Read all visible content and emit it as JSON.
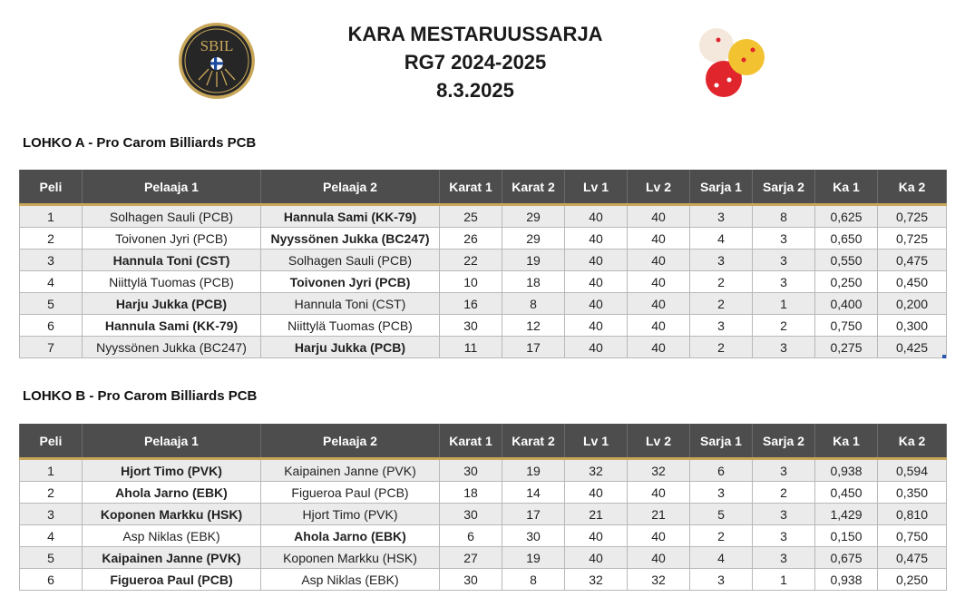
{
  "header": {
    "logo_text": "SBIL",
    "title_line1": "KARA MESTARUUSSARJA",
    "title_line2": "RG7 2024-2025",
    "title_line3": "8.3.2025",
    "logo_icon": "sbil-logo-icon",
    "balls_icon": "billiard-balls-icon"
  },
  "columns": [
    "Peli",
    "Pelaaja 1",
    "Pelaaja 2",
    "Karat 1",
    "Karat 2",
    "Lv 1",
    "Lv 2",
    "Sarja 1",
    "Sarja 2",
    "Ka 1",
    "Ka 2"
  ],
  "groups": [
    {
      "title": "LOHKO A - Pro Carom Billiards PCB",
      "rows": [
        {
          "peli": "1",
          "p1": "Solhagen Sauli (PCB)",
          "p2": "Hannula Sami (KK-79)",
          "k1": "25",
          "k2": "29",
          "lv1": "40",
          "lv2": "40",
          "s1": "3",
          "s2": "8",
          "ka1": "0,625",
          "ka2": "0,725",
          "winner": 2
        },
        {
          "peli": "2",
          "p1": "Toivonen Jyri (PCB)",
          "p2": "Nyyssönen Jukka (BC247)",
          "k1": "26",
          "k2": "29",
          "lv1": "40",
          "lv2": "40",
          "s1": "4",
          "s2": "3",
          "ka1": "0,650",
          "ka2": "0,725",
          "winner": 2
        },
        {
          "peli": "3",
          "p1": "Hannula Toni (CST)",
          "p2": "Solhagen Sauli (PCB)",
          "k1": "22",
          "k2": "19",
          "lv1": "40",
          "lv2": "40",
          "s1": "3",
          "s2": "3",
          "ka1": "0,550",
          "ka2": "0,475",
          "winner": 1
        },
        {
          "peli": "4",
          "p1": "Niittylä Tuomas (PCB)",
          "p2": "Toivonen Jyri (PCB)",
          "k1": "10",
          "k2": "18",
          "lv1": "40",
          "lv2": "40",
          "s1": "2",
          "s2": "3",
          "ka1": "0,250",
          "ka2": "0,450",
          "winner": 2
        },
        {
          "peli": "5",
          "p1": "Harju Jukka (PCB)",
          "p2": "Hannula Toni (CST)",
          "k1": "16",
          "k2": "8",
          "lv1": "40",
          "lv2": "40",
          "s1": "2",
          "s2": "1",
          "ka1": "0,400",
          "ka2": "0,200",
          "winner": 1
        },
        {
          "peli": "6",
          "p1": "Hannula Sami (KK-79)",
          "p2": "Niittylä Tuomas (PCB)",
          "k1": "30",
          "k2": "12",
          "lv1": "40",
          "lv2": "40",
          "s1": "3",
          "s2": "2",
          "ka1": "0,750",
          "ka2": "0,300",
          "winner": 1
        },
        {
          "peli": "7",
          "p1": "Nyyssönen Jukka (BC247)",
          "p2": "Harju Jukka (PCB)",
          "k1": "11",
          "k2": "17",
          "lv1": "40",
          "lv2": "40",
          "s1": "2",
          "s2": "3",
          "ka1": "0,275",
          "ka2": "0,425",
          "winner": 2
        }
      ]
    },
    {
      "title": "LOHKO B - Pro Carom Billiards PCB",
      "rows": [
        {
          "peli": "1",
          "p1": "Hjort Timo (PVK)",
          "p2": "Kaipainen Janne (PVK)",
          "k1": "30",
          "k2": "19",
          "lv1": "32",
          "lv2": "32",
          "s1": "6",
          "s2": "3",
          "ka1": "0,938",
          "ka2": "0,594",
          "winner": 1
        },
        {
          "peli": "2",
          "p1": "Ahola Jarno (EBK)",
          "p2": "Figueroa Paul (PCB)",
          "k1": "18",
          "k2": "14",
          "lv1": "40",
          "lv2": "40",
          "s1": "3",
          "s2": "2",
          "ka1": "0,450",
          "ka2": "0,350",
          "winner": 1
        },
        {
          "peli": "3",
          "p1": "Koponen Markku (HSK)",
          "p2": "Hjort Timo (PVK)",
          "k1": "30",
          "k2": "17",
          "lv1": "21",
          "lv2": "21",
          "s1": "5",
          "s2": "3",
          "ka1": "1,429",
          "ka2": "0,810",
          "winner": 1
        },
        {
          "peli": "4",
          "p1": "Asp Niklas (EBK)",
          "p2": "Ahola Jarno (EBK)",
          "k1": "6",
          "k2": "30",
          "lv1": "40",
          "lv2": "40",
          "s1": "2",
          "s2": "3",
          "ka1": "0,150",
          "ka2": "0,750",
          "winner": 2
        },
        {
          "peli": "5",
          "p1": "Kaipainen Janne (PVK)",
          "p2": "Koponen Markku (HSK)",
          "k1": "27",
          "k2": "19",
          "lv1": "40",
          "lv2": "40",
          "s1": "4",
          "s2": "3",
          "ka1": "0,675",
          "ka2": "0,475",
          "winner": 1
        },
        {
          "peli": "6",
          "p1": "Figueroa Paul (PCB)",
          "p2": "Asp Niklas (EBK)",
          "k1": "30",
          "k2": "8",
          "lv1": "32",
          "lv2": "32",
          "s1": "3",
          "s2": "1",
          "ka1": "0,938",
          "ka2": "0,250",
          "winner": 1
        }
      ]
    }
  ]
}
